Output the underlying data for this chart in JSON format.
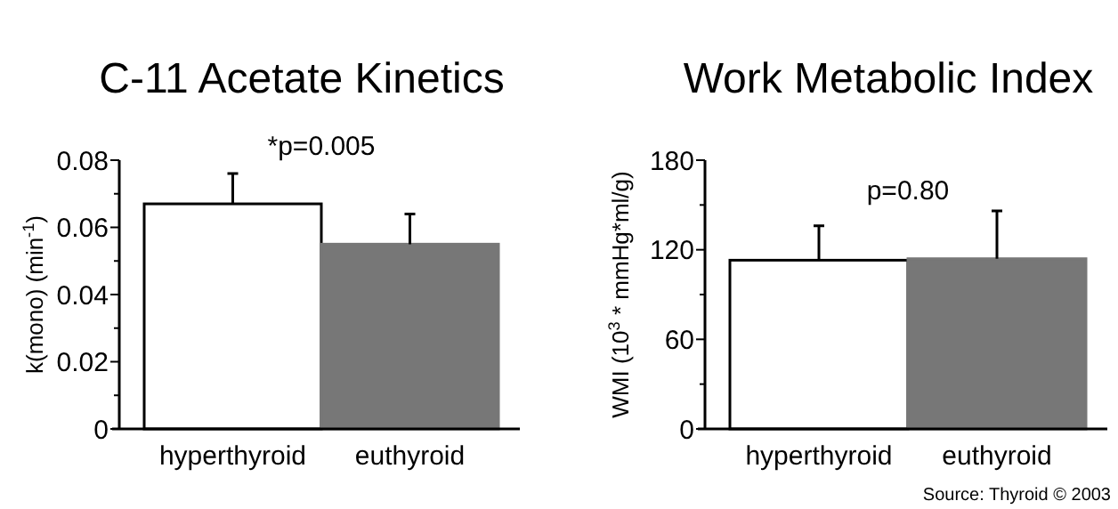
{
  "chart_data": [
    {
      "type": "bar",
      "title": "C-11 Acetate Kinetics",
      "ylabel": "k(mono) (min$^{-1}$)",
      "categories": [
        "hyperthyroid",
        "euthyroid"
      ],
      "values": [
        0.067,
        0.055
      ],
      "colors": [
        "#ffffff",
        "#777777"
      ],
      "errors": [
        [
          0.067,
          0.076
        ],
        [
          0.055,
          0.064
        ]
      ],
      "ylim": [
        0,
        0.08
      ],
      "yticks": [
        0,
        {
          "value": 0.01,
          "label": null
        },
        0.02,
        {
          "value": 0.03,
          "label": null
        },
        0.04,
        {
          "value": 0.05,
          "label": null
        },
        0.06,
        {
          "value": 0.07,
          "label": null
        },
        0.08
      ],
      "annotations": [
        "*p=0.005"
      ]
    },
    {
      "type": "bar",
      "title": "Work Metabolic Index",
      "ylabel": "WMI (10$^{3}$ * mmHg*ml/g)",
      "categories": [
        "hyperthyroid",
        "euthyroid"
      ],
      "values": [
        113,
        114
      ],
      "colors": [
        "#ffffff",
        "#777777"
      ],
      "errors": [
        [
          113,
          136
        ],
        [
          114,
          146
        ]
      ],
      "ylim": [
        0,
        180
      ],
      "yticks": [
        0,
        {
          "value": 30,
          "label": null
        },
        60,
        {
          "value": 90,
          "label": null
        },
        120,
        {
          "value": 150,
          "label": null
        },
        180
      ],
      "annotations": [
        "p=0.80",
        "Source: Thyroid © 2003"
      ]
    }
  ]
}
